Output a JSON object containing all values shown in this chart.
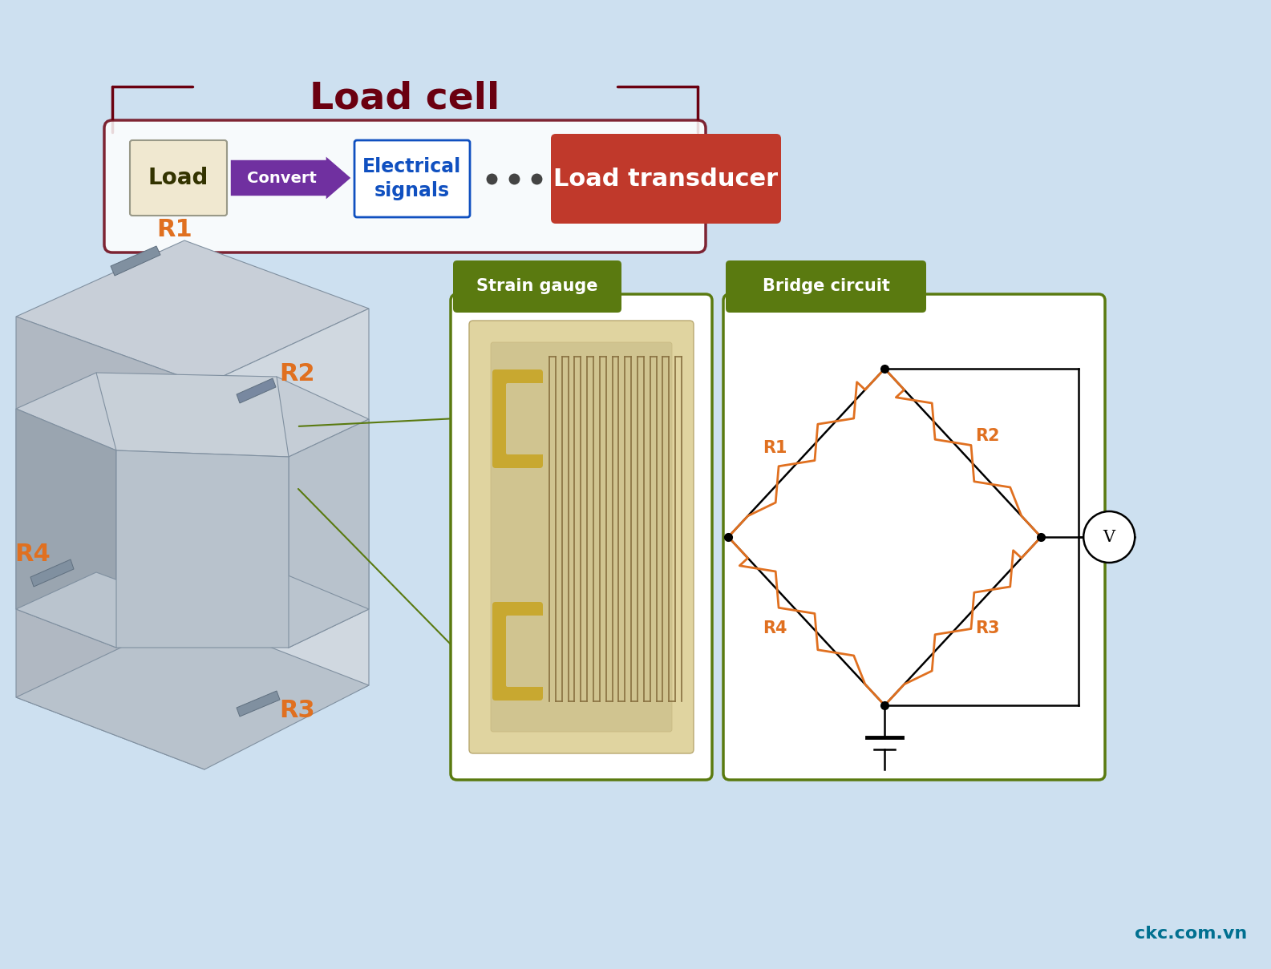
{
  "bg_color": "#cde0f0",
  "title_text": "Load cell",
  "title_color": "#6b0010",
  "load_text": "Load",
  "convert_text": "Convert",
  "electrical_text": "Electrical\nsignals",
  "transducer_text": "Load transducer",
  "transducer_bg": "#c0392b",
  "transducer_color": "#ffffff",
  "strain_gauge_label": "Strain gauge",
  "bridge_circuit_label": "Bridge circuit",
  "green_color": "#5a7a10",
  "green_border": "#6a8a18",
  "orange_color": "#e07020",
  "purple_color": "#7030a0",
  "blue_color": "#1050c0",
  "r1_label": "R1",
  "r2_label": "R2",
  "r3_label": "R3",
  "r4_label": "R4",
  "footer_text": "ckc.com.vn",
  "footer_color": "#007090",
  "dots_color": "#444444"
}
